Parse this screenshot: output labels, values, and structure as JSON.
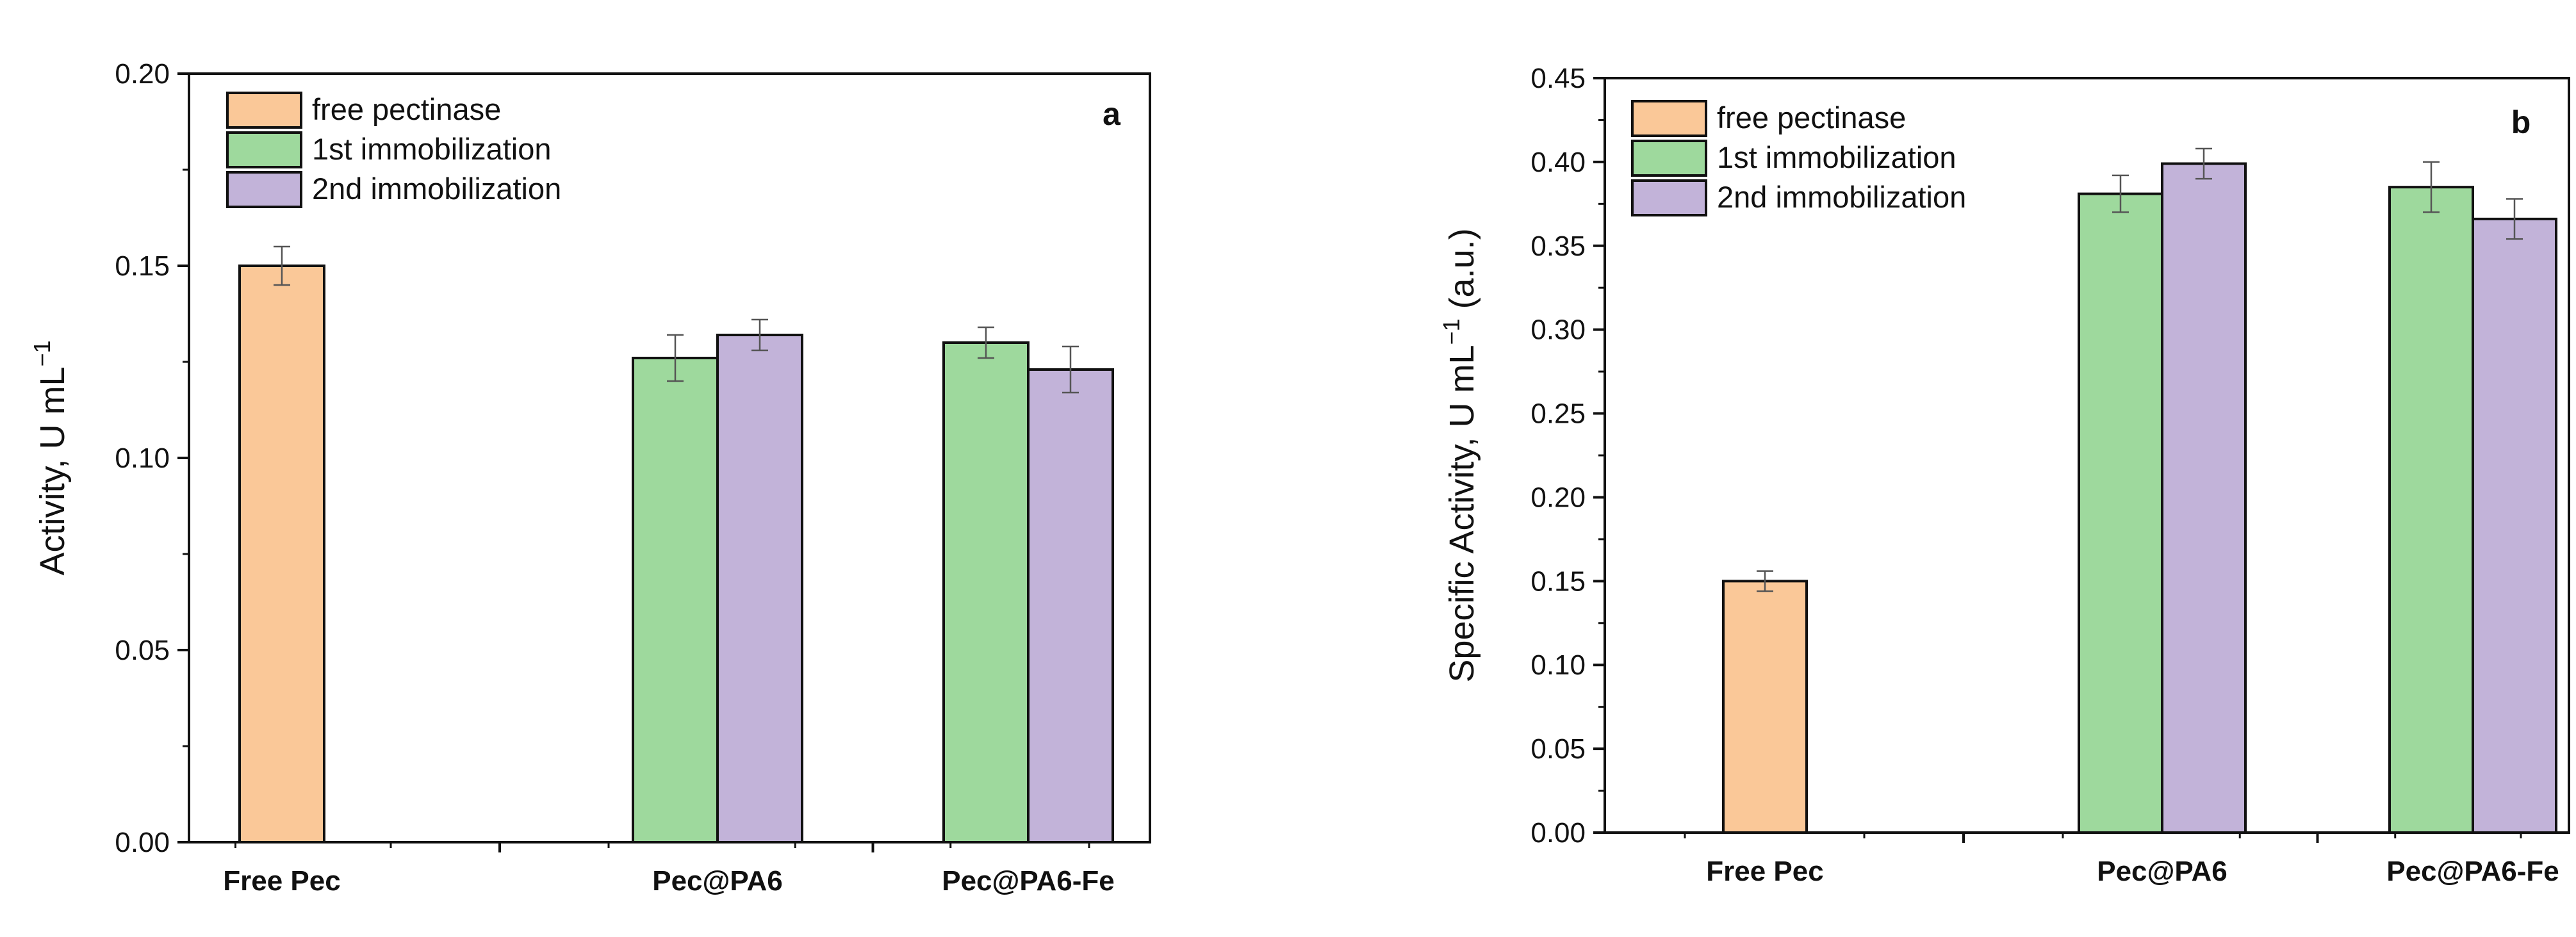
{
  "chart_data": [
    {
      "type": "bar",
      "panel_label": "a",
      "title": "",
      "xlabel": "",
      "ylabel": "Activity, U mL",
      "ylabel_sup": "−1",
      "ylabel_tail": "",
      "ylim": [
        0,
        0.2
      ],
      "yticks": [
        "0.00",
        "0.05",
        "0.10",
        "0.15",
        "0.20"
      ],
      "categories": [
        "Free Pec",
        "Pec@PA6",
        "Pec@PA6-Fe"
      ],
      "legend_position": "top-left",
      "series": [
        {
          "name": "free pectinase",
          "color": "#FAC898",
          "values": [
            0.15,
            null,
            null
          ],
          "errors": [
            0.005,
            null,
            null
          ]
        },
        {
          "name": "1st immobilization",
          "color": "#9ED99D",
          "values": [
            null,
            0.126,
            0.13
          ],
          "errors": [
            null,
            0.006,
            0.004
          ]
        },
        {
          "name": "2nd immobilization",
          "color": "#C2B3D9",
          "values": [
            null,
            0.132,
            0.123
          ],
          "errors": [
            null,
            0.004,
            0.006
          ]
        }
      ]
    },
    {
      "type": "bar",
      "panel_label": "b",
      "title": "",
      "xlabel": "",
      "ylabel": "Specific Activity, U mL",
      "ylabel_sup": "−1",
      "ylabel_tail": " (a.u.)",
      "ylim": [
        0,
        0.45
      ],
      "yticks": [
        "0.00",
        "0.05",
        "0.10",
        "0.15",
        "0.20",
        "0.25",
        "0.30",
        "0.35",
        "0.40",
        "0.45"
      ],
      "categories": [
        "Free Pec",
        "Pec@PA6",
        "Pec@PA6-Fe"
      ],
      "legend_position": "top-left",
      "series": [
        {
          "name": "free pectinase",
          "color": "#FAC898",
          "values": [
            0.15,
            null,
            null
          ],
          "errors": [
            0.006,
            null,
            null
          ]
        },
        {
          "name": "1st immobilization",
          "color": "#9ED99D",
          "values": [
            null,
            0.381,
            0.385
          ],
          "errors": [
            null,
            0.011,
            0.015
          ]
        },
        {
          "name": "2nd immobilization",
          "color": "#C2B3D9",
          "values": [
            null,
            0.399,
            0.366
          ],
          "errors": [
            null,
            0.009,
            0.012
          ]
        }
      ]
    }
  ]
}
